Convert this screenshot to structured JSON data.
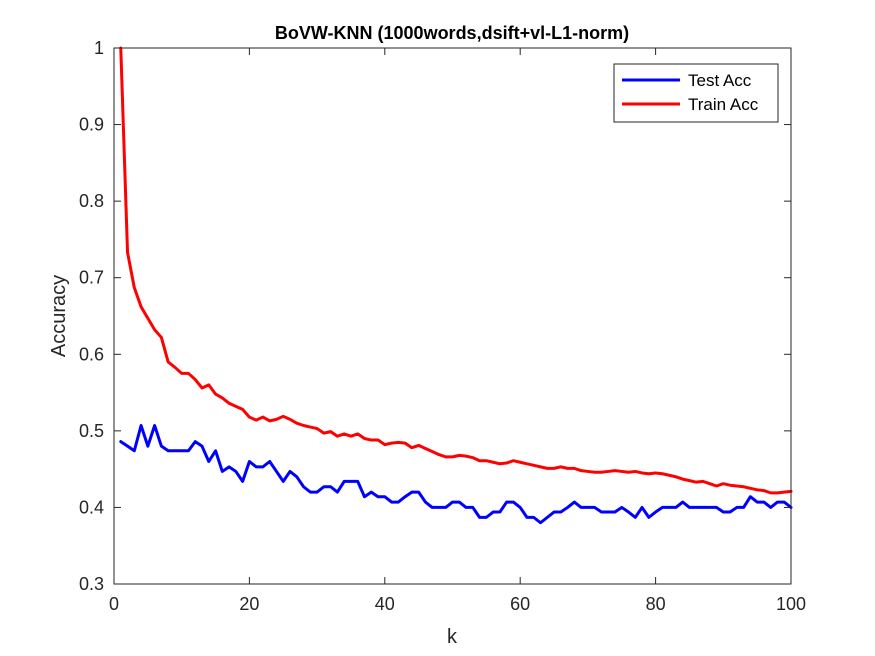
{
  "chart_data": {
    "type": "line",
    "title": "BoVW-KNN (1000words,dsift+vl-L1-norm)",
    "xlabel": "k",
    "ylabel": "Accuracy",
    "xlim": [
      0,
      100
    ],
    "ylim": [
      0.3,
      1
    ],
    "xticks": [
      "0",
      "20",
      "40",
      "60",
      "80",
      "100"
    ],
    "yticks": [
      "0.3",
      "0.4",
      "0.5",
      "0.6",
      "0.7",
      "0.8",
      "0.9",
      "1"
    ],
    "grid": false,
    "legend_position": "top-right",
    "series": [
      {
        "name": "Test Acc",
        "color": "#0000ff",
        "x": [
          1,
          2,
          3,
          4,
          5,
          6,
          7,
          8,
          9,
          10,
          11,
          12,
          13,
          14,
          15,
          16,
          17,
          18,
          19,
          20,
          21,
          22,
          23,
          24,
          25,
          26,
          27,
          28,
          29,
          30,
          31,
          32,
          33,
          34,
          35,
          36,
          37,
          38,
          39,
          40,
          41,
          42,
          43,
          44,
          45,
          46,
          47,
          48,
          49,
          50,
          51,
          52,
          53,
          54,
          55,
          56,
          57,
          58,
          59,
          60,
          61,
          62,
          63,
          64,
          65,
          66,
          67,
          68,
          69,
          70,
          71,
          72,
          73,
          74,
          75,
          76,
          77,
          78,
          79,
          80,
          81,
          82,
          83,
          84,
          85,
          86,
          87,
          88,
          89,
          90,
          91,
          92,
          93,
          94,
          95,
          96,
          97,
          98,
          99,
          100
        ],
        "y": [
          0.486,
          0.48,
          0.474,
          0.507,
          0.48,
          0.507,
          0.48,
          0.474,
          0.474,
          0.474,
          0.474,
          0.486,
          0.48,
          0.46,
          0.474,
          0.447,
          0.453,
          0.447,
          0.434,
          0.46,
          0.453,
          0.453,
          0.46,
          0.447,
          0.434,
          0.447,
          0.44,
          0.427,
          0.42,
          0.42,
          0.427,
          0.427,
          0.42,
          0.434,
          0.434,
          0.434,
          0.414,
          0.42,
          0.414,
          0.414,
          0.407,
          0.407,
          0.414,
          0.42,
          0.42,
          0.407,
          0.4,
          0.4,
          0.4,
          0.407,
          0.407,
          0.4,
          0.4,
          0.387,
          0.387,
          0.394,
          0.394,
          0.407,
          0.407,
          0.4,
          0.387,
          0.387,
          0.38,
          0.387,
          0.394,
          0.394,
          0.4,
          0.407,
          0.4,
          0.4,
          0.4,
          0.394,
          0.394,
          0.394,
          0.4,
          0.394,
          0.387,
          0.4,
          0.387,
          0.394,
          0.4,
          0.4,
          0.4,
          0.407,
          0.4,
          0.4,
          0.4,
          0.4,
          0.4,
          0.394,
          0.394,
          0.4,
          0.4,
          0.414,
          0.407,
          0.407,
          0.4,
          0.407,
          0.407,
          0.4
        ]
      },
      {
        "name": "Train Acc",
        "color": "#ff0000",
        "x": [
          1,
          2,
          3,
          4,
          5,
          6,
          7,
          8,
          9,
          10,
          11,
          12,
          13,
          14,
          15,
          16,
          17,
          18,
          19,
          20,
          21,
          22,
          23,
          24,
          25,
          26,
          27,
          28,
          29,
          30,
          31,
          32,
          33,
          34,
          35,
          36,
          37,
          38,
          39,
          40,
          41,
          42,
          43,
          44,
          45,
          46,
          47,
          48,
          49,
          50,
          51,
          52,
          53,
          54,
          55,
          56,
          57,
          58,
          59,
          60,
          61,
          62,
          63,
          64,
          65,
          66,
          67,
          68,
          69,
          70,
          71,
          72,
          73,
          74,
          75,
          76,
          77,
          78,
          79,
          80,
          81,
          82,
          83,
          84,
          85,
          86,
          87,
          88,
          89,
          90,
          91,
          92,
          93,
          94,
          95,
          96,
          97,
          98,
          99,
          100
        ],
        "y": [
          1.0,
          0.733,
          0.687,
          0.662,
          0.647,
          0.632,
          0.622,
          0.59,
          0.583,
          0.575,
          0.575,
          0.567,
          0.556,
          0.56,
          0.548,
          0.543,
          0.536,
          0.532,
          0.528,
          0.518,
          0.514,
          0.518,
          0.513,
          0.515,
          0.519,
          0.515,
          0.51,
          0.507,
          0.505,
          0.503,
          0.497,
          0.499,
          0.493,
          0.496,
          0.493,
          0.496,
          0.49,
          0.488,
          0.488,
          0.482,
          0.484,
          0.485,
          0.484,
          0.478,
          0.481,
          0.477,
          0.473,
          0.469,
          0.466,
          0.466,
          0.468,
          0.467,
          0.465,
          0.461,
          0.461,
          0.459,
          0.457,
          0.458,
          0.461,
          0.459,
          0.457,
          0.455,
          0.453,
          0.451,
          0.451,
          0.453,
          0.451,
          0.451,
          0.448,
          0.447,
          0.446,
          0.446,
          0.447,
          0.448,
          0.447,
          0.446,
          0.447,
          0.445,
          0.444,
          0.445,
          0.444,
          0.442,
          0.44,
          0.437,
          0.435,
          0.433,
          0.434,
          0.431,
          0.428,
          0.431,
          0.429,
          0.428,
          0.427,
          0.425,
          0.423,
          0.422,
          0.419,
          0.419,
          0.42,
          0.421
        ]
      }
    ]
  }
}
